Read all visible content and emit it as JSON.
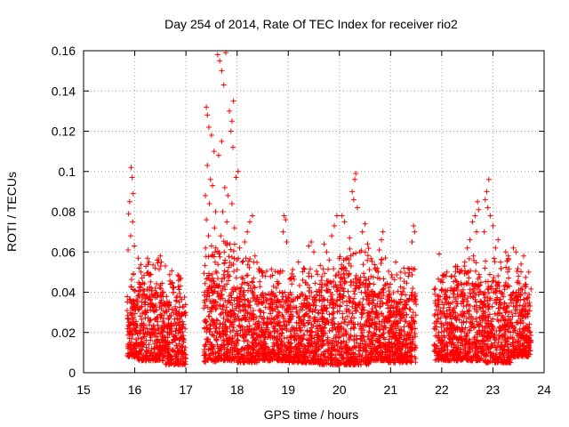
{
  "chart_data": {
    "type": "scatter",
    "title": "Day 254 of 2014, Rate Of TEC Index for receiver rio2",
    "xlabel": "GPS time / hours",
    "ylabel": "ROTI / TECUs",
    "xlim": [
      15,
      24
    ],
    "ylim": [
      0,
      0.16
    ],
    "xticks": [
      "15",
      "16",
      "17",
      "18",
      "19",
      "20",
      "21",
      "22",
      "23",
      "24"
    ],
    "yticks": [
      "0",
      "0.02",
      "0.04",
      "0.06",
      "0.08",
      "0.1",
      "0.12",
      "0.14",
      "0.16"
    ],
    "grid": true,
    "marker": "+",
    "color": "#ff0000",
    "series": [
      {
        "name": "ROTI",
        "segments": [
          {
            "x": [
              15.85,
              16.05
            ],
            "core": [
              0.008,
              0.038
            ],
            "spikes": [
              [
                15.93,
                0.102
              ],
              [
                15.95,
                0.097
              ],
              [
                15.97,
                0.089
              ],
              [
                15.9,
                0.085
              ],
              [
                15.88,
                0.079
              ],
              [
                15.96,
                0.075
              ],
              [
                15.92,
                0.068
              ],
              [
                15.99,
                0.063
              ],
              [
                15.87,
                0.061
              ]
            ]
          },
          {
            "x": [
              16.05,
              16.6
            ],
            "core": [
              0.006,
              0.045
            ],
            "spikes": [
              [
                16.5,
                0.058
              ],
              [
                16.52,
                0.055
              ],
              [
                16.12,
                0.05
              ],
              [
                16.3,
                0.049
              ],
              [
                16.4,
                0.052
              ]
            ]
          },
          {
            "x": [
              16.6,
              17.0
            ],
            "core": [
              0.004,
              0.04
            ],
            "spikes": [
              [
                16.9,
                0.047
              ],
              [
                16.7,
                0.044
              ]
            ]
          },
          {
            "x": [
              17.35,
              17.6
            ],
            "core": [
              0.005,
              0.05
            ],
            "spikes": [
              [
                17.4,
                0.132
              ],
              [
                17.42,
                0.128
              ],
              [
                17.45,
                0.122
              ],
              [
                17.5,
                0.118
              ],
              [
                17.55,
                0.11
              ],
              [
                17.42,
                0.103
              ],
              [
                17.48,
                0.096
              ],
              [
                17.52,
                0.093
              ],
              [
                17.38,
                0.088
              ],
              [
                17.46,
                0.084
              ],
              [
                17.58,
                0.08
              ],
              [
                17.4,
                0.076
              ],
              [
                17.56,
                0.072
              ],
              [
                17.44,
                0.068
              ],
              [
                17.5,
                0.063
              ],
              [
                17.57,
                0.06
              ]
            ]
          },
          {
            "x": [
              17.6,
              18.0
            ],
            "core": [
              0.006,
              0.055
            ],
            "spikes": [
              [
                17.62,
                0.158
              ],
              [
                17.66,
                0.155
              ],
              [
                17.78,
                0.159
              ],
              [
                17.7,
                0.15
              ],
              [
                17.74,
                0.143
              ],
              [
                17.93,
                0.135
              ],
              [
                17.85,
                0.13
              ],
              [
                17.9,
                0.125
              ],
              [
                17.88,
                0.12
              ],
              [
                17.7,
                0.115
              ],
              [
                17.92,
                0.112
              ],
              [
                17.64,
                0.108
              ],
              [
                18.02,
                0.1
              ],
              [
                17.98,
                0.097
              ],
              [
                17.76,
                0.092
              ],
              [
                17.82,
                0.088
              ],
              [
                17.9,
                0.084
              ],
              [
                17.72,
                0.08
              ],
              [
                17.8,
                0.075
              ],
              [
                17.95,
                0.072
              ],
              [
                17.68,
                0.068
              ],
              [
                17.86,
                0.064
              ],
              [
                17.75,
                0.06
              ]
            ]
          },
          {
            "x": [
              18.0,
              18.4
            ],
            "core": [
              0.005,
              0.045
            ],
            "spikes": [
              [
                18.3,
                0.078
              ],
              [
                18.25,
                0.075
              ],
              [
                18.2,
                0.07
              ],
              [
                18.15,
                0.065
              ],
              [
                18.05,
                0.062
              ],
              [
                18.35,
                0.058
              ],
              [
                18.1,
                0.055
              ]
            ]
          },
          {
            "x": [
              18.4,
              19.0
            ],
            "core": [
              0.006,
              0.04
            ],
            "spikes": [
              [
                18.92,
                0.078
              ],
              [
                18.95,
                0.076
              ],
              [
                18.9,
                0.07
              ],
              [
                18.97,
                0.065
              ],
              [
                18.8,
                0.05
              ],
              [
                18.55,
                0.048
              ]
            ]
          },
          {
            "x": [
              19.0,
              19.55
            ],
            "core": [
              0.005,
              0.04
            ],
            "spikes": [
              [
                19.45,
                0.065
              ],
              [
                19.4,
                0.063
              ],
              [
                19.5,
                0.06
              ],
              [
                19.2,
                0.055
              ],
              [
                19.3,
                0.052
              ],
              [
                19.1,
                0.048
              ]
            ]
          },
          {
            "x": [
              19.55,
              20.0
            ],
            "core": [
              0.004,
              0.045
            ],
            "spikes": [
              [
                19.95,
                0.078
              ],
              [
                19.9,
                0.073
              ],
              [
                19.85,
                0.068
              ],
              [
                19.7,
                0.064
              ],
              [
                19.75,
                0.06
              ],
              [
                19.8,
                0.056
              ]
            ]
          },
          {
            "x": [
              20.0,
              20.6
            ],
            "core": [
              0.004,
              0.05
            ],
            "spikes": [
              [
                20.32,
                0.099
              ],
              [
                20.3,
                0.096
              ],
              [
                20.25,
                0.09
              ],
              [
                20.28,
                0.086
              ],
              [
                20.35,
                0.082
              ],
              [
                20.05,
                0.078
              ],
              [
                20.1,
                0.075
              ],
              [
                20.5,
                0.074
              ],
              [
                20.45,
                0.07
              ],
              [
                20.2,
                0.067
              ],
              [
                20.55,
                0.064
              ],
              [
                20.4,
                0.06
              ],
              [
                20.15,
                0.057
              ]
            ]
          },
          {
            "x": [
              20.6,
              21.0
            ],
            "core": [
              0.006,
              0.045
            ],
            "spikes": [
              [
                20.85,
                0.07
              ],
              [
                20.82,
                0.066
              ],
              [
                20.78,
                0.061
              ],
              [
                20.9,
                0.057
              ],
              [
                20.7,
                0.052
              ]
            ]
          },
          {
            "x": [
              20.95,
              21.5
            ],
            "core": [
              0.005,
              0.04
            ],
            "spikes": [
              [
                21.45,
                0.073
              ],
              [
                21.47,
                0.07
              ],
              [
                21.42,
                0.065
              ],
              [
                21.1,
                0.055
              ],
              [
                21.2,
                0.05
              ],
              [
                21.35,
                0.048
              ]
            ]
          },
          {
            "x": [
              21.85,
              22.3
            ],
            "core": [
              0.006,
              0.042
            ],
            "spikes": [
              [
                21.95,
                0.059
              ],
              [
                22.1,
                0.05
              ],
              [
                22.25,
                0.048
              ],
              [
                22.0,
                0.046
              ]
            ]
          },
          {
            "x": [
              22.3,
              22.8
            ],
            "core": [
              0.006,
              0.045
            ],
            "spikes": [
              [
                22.7,
                0.085
              ],
              [
                22.72,
                0.081
              ],
              [
                22.65,
                0.078
              ],
              [
                22.6,
                0.075
              ],
              [
                22.68,
                0.07
              ],
              [
                22.55,
                0.066
              ],
              [
                22.5,
                0.062
              ],
              [
                22.62,
                0.058
              ],
              [
                22.45,
                0.055
              ],
              [
                22.35,
                0.05
              ]
            ]
          },
          {
            "x": [
              22.8,
              23.35
            ],
            "core": [
              0.005,
              0.045
            ],
            "spikes": [
              [
                22.92,
                0.096
              ],
              [
                22.88,
                0.09
              ],
              [
                22.85,
                0.086
              ],
              [
                22.9,
                0.082
              ],
              [
                22.95,
                0.078
              ],
              [
                23.0,
                0.073
              ],
              [
                22.83,
                0.07
              ],
              [
                23.1,
                0.066
              ],
              [
                23.05,
                0.062
              ],
              [
                23.25,
                0.06
              ],
              [
                23.3,
                0.058
              ],
              [
                23.15,
                0.055
              ]
            ]
          },
          {
            "x": [
              23.35,
              23.75
            ],
            "core": [
              0.008,
              0.04
            ],
            "spikes": [
              [
                23.4,
                0.062
              ],
              [
                23.45,
                0.06
              ],
              [
                23.6,
                0.058
              ],
              [
                23.55,
                0.054
              ],
              [
                23.7,
                0.05
              ],
              [
                23.5,
                0.048
              ]
            ]
          }
        ]
      }
    ]
  }
}
